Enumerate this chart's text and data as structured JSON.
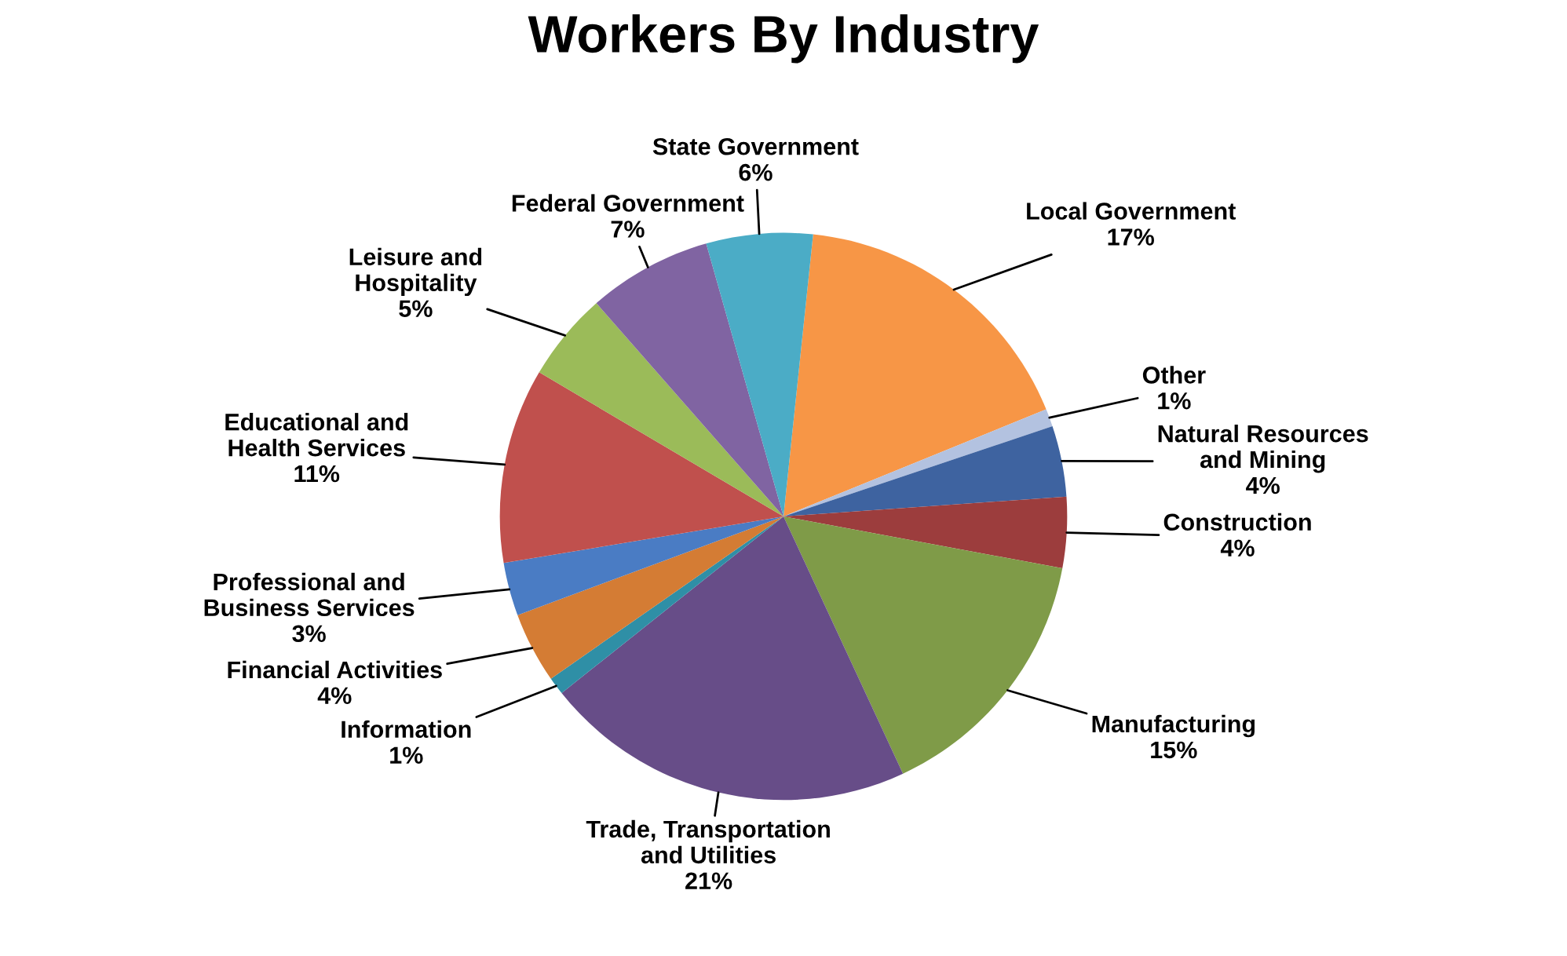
{
  "chart_data": {
    "type": "pie",
    "title": "Workers By Industry",
    "categories": [
      "Local Government",
      "Other",
      "Natural Resources\nand Mining",
      "Construction",
      "Manufacturing",
      "Trade, Transportation\nand Utilities",
      "Information",
      "Financial Activities",
      "Professional and\nBusiness Services",
      "Educational and\nHealth Services",
      "Leisure and\nHospitality",
      "Federal Government",
      "State Government"
    ],
    "values": [
      17,
      1,
      4,
      4,
      15,
      21,
      1,
      4,
      3,
      11,
      5,
      7,
      6
    ],
    "value_labels": [
      "17%",
      "1%",
      "4%",
      "4%",
      "15%",
      "21%",
      "1%",
      "4%",
      "3%",
      "11%",
      "5%",
      "7%",
      "6%"
    ],
    "colors": [
      "#f79646",
      "#b3c2e0",
      "#3e63a0",
      "#9c3d3d",
      "#7f9b48",
      "#674d88",
      "#2f8fa6",
      "#d47c34",
      "#4a7cc4",
      "#c0504d",
      "#9bbb59",
      "#8064a2",
      "#4bacc6"
    ],
    "legend": false
  }
}
